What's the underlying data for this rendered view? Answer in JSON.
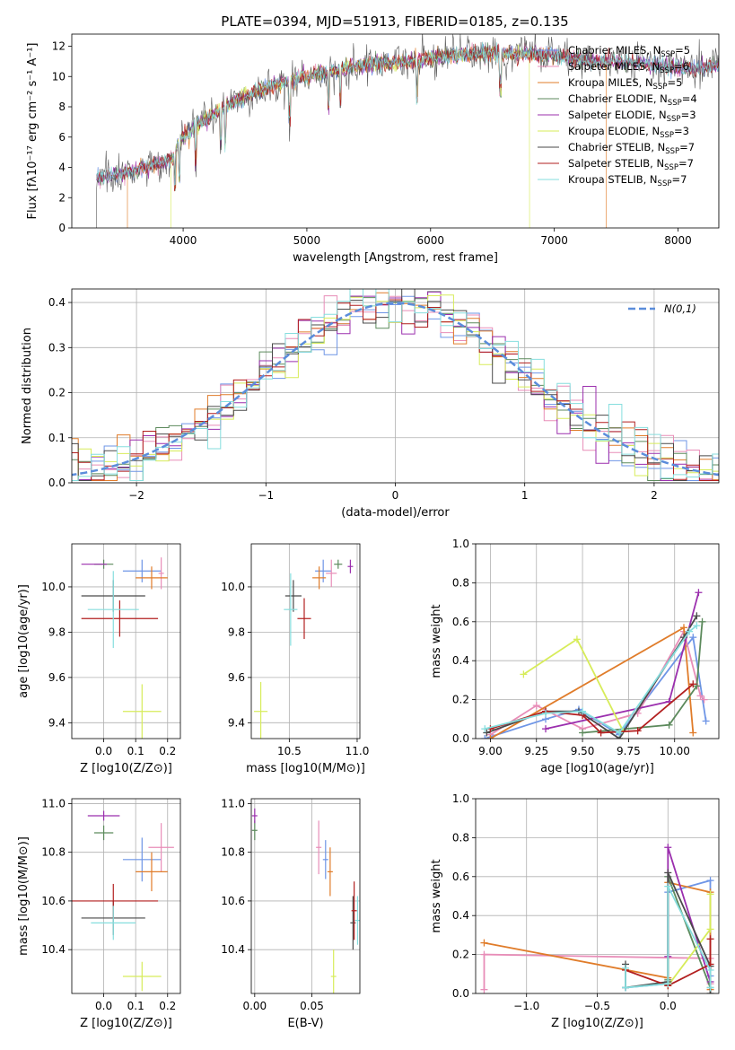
{
  "figure_title": "PLATE=0394, MJD=51913, FIBERID=0185, z=0.135",
  "colors": {
    "Chabrier MILES": "#6e95e6",
    "Salpeter MILES": "#e88db8",
    "Kroupa MILES": "#e07c2a",
    "Chabrier ELODIE": "#5c8a5c",
    "Salpeter ELODIE": "#9b2fae",
    "Kroupa ELODIE": "#d7ec5a",
    "Chabrier STELIB": "#4a4a4a",
    "Salpeter STELIB": "#b21f1f",
    "Kroupa STELIB": "#86dede"
  },
  "legend_spectrum": [
    {
      "model": "Chabrier MILES",
      "label": "Chabrier MILES, N",
      "sub": "SSP",
      "n": "=5"
    },
    {
      "model": "Salpeter MILES",
      "label": "Salpeter MILES, N",
      "sub": "SSP",
      "n": "=6"
    },
    {
      "model": "Kroupa MILES",
      "label": "Kroupa MILES, N",
      "sub": "SSP",
      "n": "=5"
    },
    {
      "model": "Chabrier ELODIE",
      "label": "Chabrier ELODIE, N",
      "sub": "SSP",
      "n": "=4"
    },
    {
      "model": "Salpeter ELODIE",
      "label": "Salpeter ELODIE, N",
      "sub": "SSP",
      "n": "=3"
    },
    {
      "model": "Kroupa ELODIE",
      "label": "Kroupa ELODIE, N",
      "sub": "SSP",
      "n": "=3"
    },
    {
      "model": "Chabrier STELIB",
      "label": "Chabrier STELIB, N",
      "sub": "SSP",
      "n": "=7"
    },
    {
      "model": "Salpeter STELIB",
      "label": "Salpeter STELIB, N",
      "sub": "SSP",
      "n": "=7"
    },
    {
      "model": "Kroupa STELIB",
      "label": "Kroupa STELIB, N",
      "sub": "SSP",
      "n": "=7"
    }
  ],
  "legend_hist": {
    "label": "N(0,1)"
  },
  "chart_data": [
    {
      "id": "spectrum",
      "type": "line",
      "xlabel": "wavelength [Angstrom, rest frame]",
      "ylabel": "Flux [fλ10⁻¹⁷ erg cm⁻² s⁻¹ A⁻¹]",
      "xlim": [
        3100,
        8330
      ],
      "ylim": [
        0,
        12.8
      ],
      "xticks": [
        4000,
        5000,
        6000,
        7000,
        8000
      ],
      "yticks": [
        0,
        2,
        4,
        6,
        8,
        10,
        12
      ],
      "envelope": [
        [
          3300,
          3.3
        ],
        [
          3500,
          3.6
        ],
        [
          3700,
          4.0
        ],
        [
          3900,
          4.5
        ],
        [
          4000,
          6.0
        ],
        [
          4200,
          7.3
        ],
        [
          4400,
          8.3
        ],
        [
          4600,
          9.0
        ],
        [
          4800,
          9.6
        ],
        [
          5000,
          10.0
        ],
        [
          5200,
          10.4
        ],
        [
          5400,
          10.7
        ],
        [
          5600,
          10.9
        ],
        [
          5800,
          11.0
        ],
        [
          6000,
          11.2
        ],
        [
          6200,
          11.4
        ],
        [
          6400,
          11.5
        ],
        [
          6600,
          11.5
        ],
        [
          6800,
          11.5
        ],
        [
          7000,
          11.4
        ],
        [
          7200,
          11.1
        ],
        [
          7400,
          11.0
        ],
        [
          7600,
          10.9
        ],
        [
          7800,
          10.8
        ],
        [
          8000,
          10.6
        ],
        [
          8200,
          10.5
        ],
        [
          8300,
          10.7
        ]
      ],
      "absorption_lines": [
        3933,
        3968,
        4101,
        4304,
        4340,
        4861,
        5175,
        5270,
        5890,
        6563
      ],
      "edges": {
        "Kroupa MILES": [
          3550,
          7420
        ],
        "Kroupa ELODIE": [
          3900,
          6800
        ],
        "Chabrier STELIB": [
          3300,
          8330
        ]
      }
    },
    {
      "id": "residual-histogram",
      "type": "histogram",
      "xlabel": "(data-model)/error",
      "ylabel": "Normed distribution",
      "xlim": [
        -2.5,
        2.5
      ],
      "ylim": [
        0,
        0.43
      ],
      "xticks": [
        -2,
        -1,
        0,
        1,
        2
      ],
      "yticks": [
        0.0,
        0.1,
        0.2,
        0.3,
        0.4
      ],
      "bin_width": 0.1
    },
    {
      "id": "age-vs-Z",
      "type": "scatter",
      "xlabel": "Z [log10(Z/Z⊙)]",
      "ylabel": "age [log10(age/yr)]",
      "xlim": [
        -0.1,
        0.24
      ],
      "ylim": [
        9.33,
        10.19
      ],
      "xticks": [
        0.0,
        0.1,
        0.2
      ],
      "yticks": [
        9.4,
        9.6,
        9.8,
        10.0
      ],
      "points": [
        {
          "model": "Chabrier MILES",
          "x": 0.12,
          "y": 10.07,
          "xerr": 0.06,
          "yerr": 0.05
        },
        {
          "model": "Salpeter MILES",
          "x": 0.18,
          "y": 10.06,
          "xerr": 0.0,
          "yerr": 0.07
        },
        {
          "model": "Kroupa MILES",
          "x": 0.15,
          "y": 10.04,
          "xerr": 0.05,
          "yerr": 0.05
        },
        {
          "model": "Chabrier ELODIE",
          "x": 0.0,
          "y": 10.1,
          "xerr": 0.03,
          "yerr": 0.02
        },
        {
          "model": "Salpeter ELODIE",
          "x": -0.03,
          "y": 10.1,
          "xerr": 0.04,
          "yerr": 0.0
        },
        {
          "model": "Kroupa ELODIE",
          "x": 0.12,
          "y": 9.45,
          "xerr": 0.06,
          "yerr": 0.12
        },
        {
          "model": "Chabrier STELIB",
          "x": 0.03,
          "y": 9.96,
          "xerr": 0.1,
          "yerr": 0.07
        },
        {
          "model": "Salpeter STELIB",
          "x": 0.05,
          "y": 9.86,
          "xerr": 0.12,
          "yerr": 0.08
        },
        {
          "model": "Kroupa STELIB",
          "x": 0.03,
          "y": 9.9,
          "xerr": 0.08,
          "yerr": 0.17
        }
      ]
    },
    {
      "id": "age-vs-mass",
      "type": "scatter",
      "xlabel": "mass [log10(M/M⊙)]",
      "ylabel": "",
      "xlim": [
        10.22,
        11.02
      ],
      "ylim": [
        9.33,
        10.19
      ],
      "xticks": [
        10.5,
        11.0
      ],
      "yticks": [
        9.4,
        9.6,
        9.8,
        10.0
      ],
      "points": [
        {
          "model": "Chabrier MILES",
          "x": 10.75,
          "y": 10.07,
          "xerr": 0.06,
          "yerr": 0.05
        },
        {
          "model": "Salpeter MILES",
          "x": 10.81,
          "y": 10.06,
          "xerr": 0.04,
          "yerr": 0.06
        },
        {
          "model": "Kroupa MILES",
          "x": 10.72,
          "y": 10.04,
          "xerr": 0.05,
          "yerr": 0.05
        },
        {
          "model": "Chabrier ELODIE",
          "x": 10.86,
          "y": 10.1,
          "xerr": 0.03,
          "yerr": 0.02
        },
        {
          "model": "Salpeter ELODIE",
          "x": 10.95,
          "y": 10.09,
          "xerr": 0.0,
          "yerr": 0.03
        },
        {
          "model": "Kroupa ELODIE",
          "x": 10.29,
          "y": 9.45,
          "xerr": 0.05,
          "yerr": 0.13
        },
        {
          "model": "Chabrier STELIB",
          "x": 10.53,
          "y": 9.96,
          "xerr": 0.06,
          "yerr": 0.07
        },
        {
          "model": "Salpeter STELIB",
          "x": 10.61,
          "y": 9.86,
          "xerr": 0.05,
          "yerr": 0.09
        },
        {
          "model": "Kroupa STELIB",
          "x": 10.51,
          "y": 9.9,
          "xerr": 0.05,
          "yerr": 0.16
        }
      ]
    },
    {
      "id": "mass-weight-vs-age",
      "type": "line",
      "xlabel": "age [log10(age/yr)]",
      "ylabel": "mass weight",
      "xlim": [
        8.92,
        10.24
      ],
      "ylim": [
        0.0,
        1.0
      ],
      "xticks": [
        9.0,
        9.25,
        9.5,
        9.75,
        10.0
      ],
      "yticks": [
        0.0,
        0.2,
        0.4,
        0.6,
        0.8,
        1.0
      ],
      "series": [
        {
          "model": "Chabrier MILES",
          "x": [
            8.97,
            9.3,
            9.48,
            9.7,
            10.1,
            10.17
          ],
          "y": [
            0.0,
            0.1,
            0.15,
            0.02,
            0.52,
            0.09
          ]
        },
        {
          "model": "Salpeter MILES",
          "x": [
            9.0,
            9.25,
            9.5,
            9.8,
            10.05,
            10.14,
            10.16
          ],
          "y": [
            0.02,
            0.17,
            0.05,
            0.13,
            0.55,
            0.22,
            0.2
          ]
        },
        {
          "model": "Kroupa MILES",
          "x": [
            9.0,
            10.05,
            10.1
          ],
          "y": [
            0.0,
            0.57,
            0.03
          ]
        },
        {
          "model": "Chabrier ELODIE",
          "x": [
            9.5,
            9.97,
            10.12,
            10.15
          ],
          "y": [
            0.03,
            0.07,
            0.27,
            0.6
          ]
        },
        {
          "model": "Salpeter ELODIE",
          "x": [
            9.3,
            9.97,
            10.13
          ],
          "y": [
            0.05,
            0.19,
            0.75
          ]
        },
        {
          "model": "Kroupa ELODIE",
          "x": [
            9.18,
            9.47,
            9.72
          ],
          "y": [
            0.33,
            0.51,
            0.04
          ]
        },
        {
          "model": "Chabrier STELIB",
          "x": [
            8.98,
            9.3,
            9.48,
            9.7,
            10.05,
            10.12
          ],
          "y": [
            0.03,
            0.14,
            0.14,
            0.0,
            0.52,
            0.63
          ]
        },
        {
          "model": "Salpeter STELIB",
          "x": [
            9.0,
            9.3,
            9.5,
            9.6,
            9.8,
            10.1
          ],
          "y": [
            0.05,
            0.14,
            0.12,
            0.03,
            0.04,
            0.28
          ]
        },
        {
          "model": "Kroupa STELIB",
          "x": [
            8.97,
            9.3,
            9.5,
            9.7,
            10.08,
            10.12
          ],
          "y": [
            0.05,
            0.13,
            0.14,
            0.03,
            0.55,
            0.58
          ]
        }
      ]
    },
    {
      "id": "mass-vs-Z",
      "type": "scatter",
      "xlabel": "Z [log10(Z/Z⊙)]",
      "ylabel": "mass [log10(M/M⊙)]",
      "xlim": [
        -0.1,
        0.24
      ],
      "ylim": [
        10.22,
        11.02
      ],
      "xticks": [
        0.0,
        0.1,
        0.2
      ],
      "yticks": [
        10.4,
        10.6,
        10.8,
        11.0
      ],
      "points": [
        {
          "model": "Chabrier MILES",
          "x": 0.12,
          "y": 10.77,
          "xerr": 0.06,
          "yerr": 0.09
        },
        {
          "model": "Salpeter MILES",
          "x": 0.18,
          "y": 10.82,
          "xerr": 0.04,
          "yerr": 0.1
        },
        {
          "model": "Kroupa MILES",
          "x": 0.15,
          "y": 10.72,
          "xerr": 0.05,
          "yerr": 0.08
        },
        {
          "model": "Chabrier ELODIE",
          "x": 0.0,
          "y": 10.88,
          "xerr": 0.03,
          "yerr": 0.03
        },
        {
          "model": "Salpeter ELODIE",
          "x": 0.0,
          "y": 10.95,
          "xerr": 0.05,
          "yerr": 0.02
        },
        {
          "model": "Kroupa ELODIE",
          "x": 0.12,
          "y": 10.29,
          "xerr": 0.06,
          "yerr": 0.06
        },
        {
          "model": "Chabrier STELIB",
          "x": 0.03,
          "y": 10.53,
          "xerr": 0.1,
          "yerr": 0.07
        },
        {
          "model": "Salpeter STELIB",
          "x": 0.03,
          "y": 10.6,
          "xerr": 0.14,
          "yerr": 0.07
        },
        {
          "model": "Kroupa STELIB",
          "x": 0.03,
          "y": 10.51,
          "xerr": 0.07,
          "yerr": 0.07
        }
      ]
    },
    {
      "id": "mass-vs-EBV",
      "type": "scatter",
      "xlabel": "E(B-V)",
      "ylabel": "",
      "xlim": [
        -0.003,
        0.092
      ],
      "ylim": [
        10.22,
        11.02
      ],
      "xticks": [
        0.0,
        0.05
      ],
      "yticks": [
        10.4,
        10.6,
        10.8,
        11.0
      ],
      "points": [
        {
          "model": "Chabrier MILES",
          "x": 0.062,
          "y": 10.77,
          "xerr": 0.0,
          "yerr": 0.08
        },
        {
          "model": "Salpeter MILES",
          "x": 0.056,
          "y": 10.82,
          "xerr": 0.0,
          "yerr": 0.11
        },
        {
          "model": "Kroupa MILES",
          "x": 0.066,
          "y": 10.72,
          "xerr": 0.0,
          "yerr": 0.1
        },
        {
          "model": "Chabrier ELODIE",
          "x": 0.0,
          "y": 10.89,
          "xerr": 0.0,
          "yerr": 0.04
        },
        {
          "model": "Salpeter ELODIE",
          "x": 0.0,
          "y": 10.95,
          "xerr": 0.0,
          "yerr": 0.03
        },
        {
          "model": "Kroupa ELODIE",
          "x": 0.069,
          "y": 10.29,
          "xerr": 0.0,
          "yerr": 0.11
        },
        {
          "model": "Chabrier STELIB",
          "x": 0.086,
          "y": 10.51,
          "xerr": 0.0,
          "yerr": 0.11
        },
        {
          "model": "Salpeter STELIB",
          "x": 0.087,
          "y": 10.56,
          "xerr": 0.0,
          "yerr": 0.12
        },
        {
          "model": "Kroupa STELIB",
          "x": 0.09,
          "y": 10.52,
          "xerr": 0.0,
          "yerr": 0.1
        }
      ]
    },
    {
      "id": "mass-weight-vs-Z",
      "type": "line",
      "xlabel": "Z [log10(Z/Z⊙)]",
      "ylabel": "mass weight",
      "xlim": [
        -1.36,
        0.36
      ],
      "ylim": [
        0.0,
        1.0
      ],
      "xticks": [
        -1.0,
        -0.5,
        0.0
      ],
      "yticks": [
        0.0,
        0.2,
        0.4,
        0.6,
        0.8,
        1.0
      ],
      "series": [
        {
          "model": "Chabrier MILES",
          "x": [
            -0.3,
            0.0,
            0.0,
            0.3,
            0.3
          ],
          "y": [
            0.03,
            0.05,
            0.52,
            0.58,
            0.09
          ]
        },
        {
          "model": "Salpeter MILES",
          "x": [
            -1.3,
            -1.3,
            0.3,
            0.3
          ],
          "y": [
            0.02,
            0.2,
            0.18,
            0.05
          ]
        },
        {
          "model": "Kroupa MILES",
          "x": [
            -1.3,
            0.0,
            0.0,
            0.3,
            0.3
          ],
          "y": [
            0.26,
            0.08,
            0.57,
            0.52,
            0.02
          ]
        },
        {
          "model": "Chabrier ELODIE",
          "x": [
            0.0,
            0.0,
            0.3
          ],
          "y": [
            0.07,
            0.6,
            0.03
          ]
        },
        {
          "model": "Salpeter ELODIE",
          "x": [
            0.0,
            0.0,
            0.3
          ],
          "y": [
            0.19,
            0.75,
            0.06
          ]
        },
        {
          "model": "Kroupa ELODIE",
          "x": [
            0.0,
            0.3,
            0.3
          ],
          "y": [
            0.04,
            0.33,
            0.51
          ]
        },
        {
          "model": "Chabrier STELIB",
          "x": [
            -0.3,
            -0.3,
            0.0,
            0.0,
            0.3,
            0.3
          ],
          "y": [
            0.15,
            0.03,
            0.06,
            0.62,
            0.14,
            0.0
          ]
        },
        {
          "model": "Salpeter STELIB",
          "x": [
            -0.3,
            0.0,
            0.3,
            0.3
          ],
          "y": [
            0.12,
            0.04,
            0.15,
            0.28
          ]
        },
        {
          "model": "Kroupa STELIB",
          "x": [
            -0.3,
            -0.3,
            0.0,
            0.0,
            0.3,
            0.3
          ],
          "y": [
            0.13,
            0.03,
            0.05,
            0.55,
            0.12,
            0.03
          ]
        }
      ]
    }
  ]
}
